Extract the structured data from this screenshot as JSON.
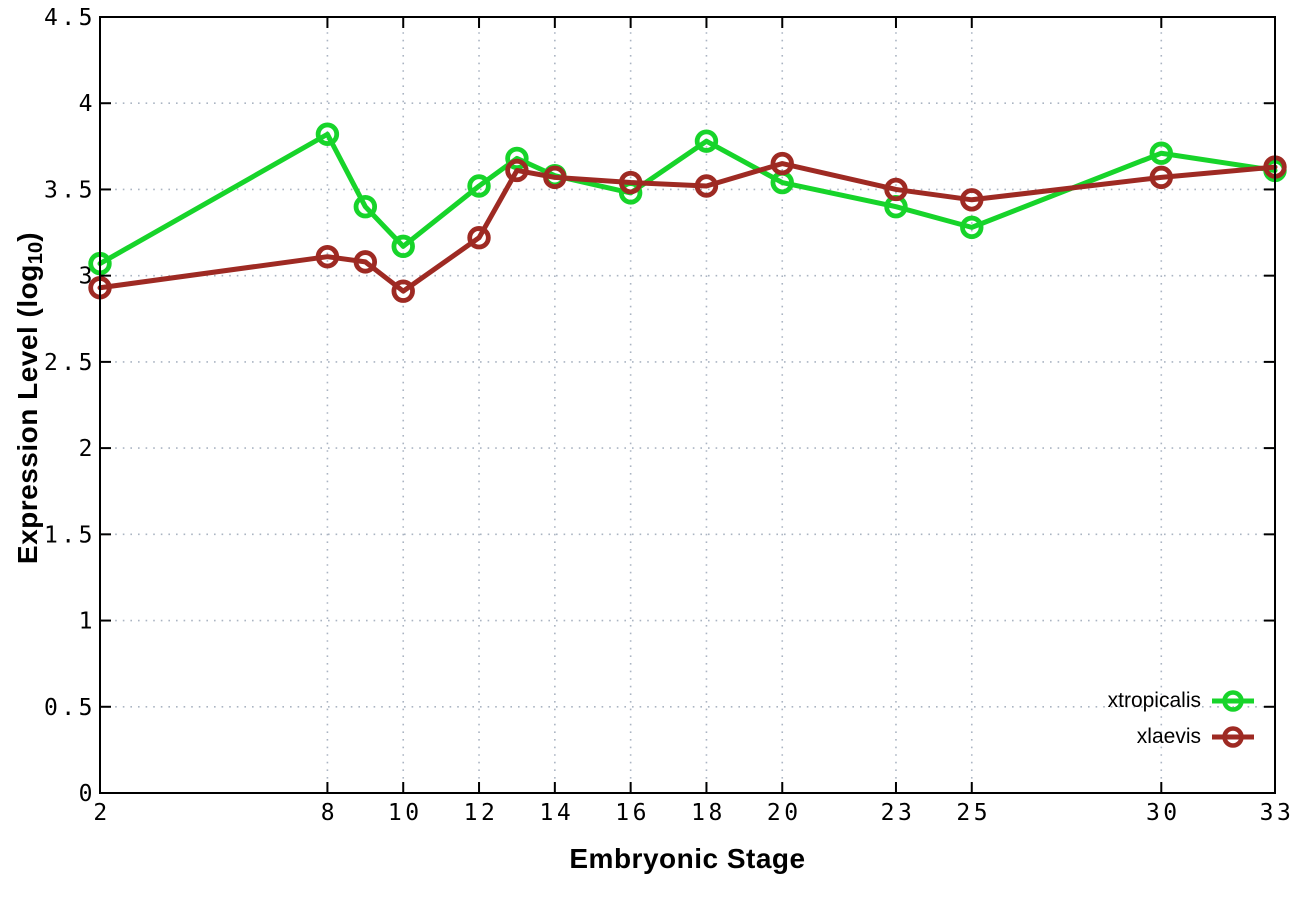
{
  "chart_data": {
    "type": "line",
    "title": "",
    "xlabel": "Embryonic Stage",
    "ylabel": "Expression Level (log10)",
    "ylabel_rich": {
      "pre": "Expression Level (log",
      "sub": "10",
      "post": ")"
    },
    "x": [
      2,
      8,
      9,
      10,
      12,
      13,
      14,
      16,
      18,
      20,
      23,
      25,
      30,
      33
    ],
    "series": [
      {
        "name": "xtropicalis",
        "color": "#17d42a",
        "values": [
          3.07,
          3.82,
          3.4,
          3.17,
          3.52,
          3.68,
          3.58,
          3.48,
          3.78,
          3.54,
          3.4,
          3.28,
          3.71,
          3.61
        ]
      },
      {
        "name": "xlaevis",
        "color": "#9e2a23",
        "values": [
          2.93,
          3.11,
          3.08,
          2.91,
          3.22,
          3.61,
          3.57,
          3.54,
          3.52,
          3.65,
          3.5,
          3.44,
          3.57,
          3.63
        ]
      }
    ],
    "xlim": [
      2,
      33
    ],
    "ylim": [
      0,
      4.5
    ],
    "x_ticks": [
      2,
      8,
      10,
      12,
      14,
      16,
      18,
      20,
      23,
      25,
      30,
      33
    ],
    "x_tick_labels": [
      "2",
      "8",
      "10",
      "12",
      "14",
      "16",
      "18",
      "20",
      "23",
      "25",
      "30",
      "33"
    ],
    "y_ticks": [
      0,
      0.5,
      1,
      1.5,
      2,
      2.5,
      3,
      3.5,
      4,
      4.5
    ],
    "y_tick_labels": [
      "0",
      "0.5",
      "1",
      "1.5",
      "2",
      "2.5",
      "3",
      "3.5",
      "4",
      "4.5"
    ],
    "grid": true,
    "grid_style": "dotted",
    "legend_position": "bottom-right",
    "marker": "open-circle"
  },
  "colors": {
    "background": "#ffffff",
    "border": "#000000",
    "grid": "#aab4c2",
    "tick_text": "#000000"
  }
}
